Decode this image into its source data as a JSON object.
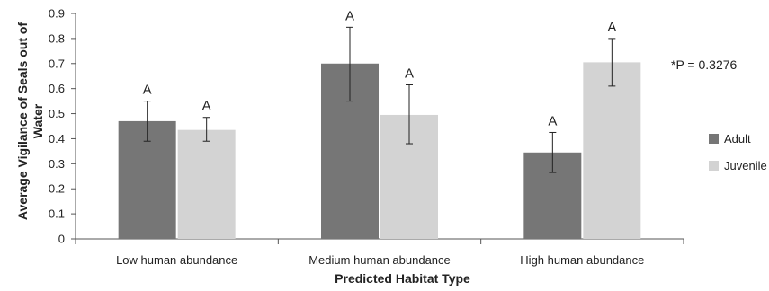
{
  "chart_data": {
    "type": "bar",
    "title": "",
    "xlabel": "Predicted Habitat Type",
    "ylabel": "Average Vigilance of Seals out of Water",
    "ylim": [
      0,
      0.9
    ],
    "yticks": [
      "0",
      "0.1",
      "0.2",
      "0.3",
      "0.4",
      "0.5",
      "0.6",
      "0.7",
      "0.8",
      "0.9"
    ],
    "categories": [
      "Low human abundance",
      "Medium human abundance",
      "High human abundance"
    ],
    "series": [
      {
        "name": "Adult",
        "color": "#767676",
        "values": [
          0.47,
          0.7,
          0.345
        ],
        "err_low": [
          0.39,
          0.55,
          0.265
        ],
        "err_high": [
          0.55,
          0.845,
          0.425
        ],
        "labels": [
          "A",
          "A",
          "A"
        ]
      },
      {
        "name": "Juvenile",
        "color": "#d3d3d3",
        "values": [
          0.435,
          0.495,
          0.705
        ],
        "err_low": [
          0.39,
          0.38,
          0.61
        ],
        "err_high": [
          0.485,
          0.615,
          0.8
        ],
        "labels": [
          "A",
          "A",
          "A"
        ]
      }
    ],
    "legend_position": "right",
    "annotation": "*P = 0.3276",
    "grid": false
  }
}
